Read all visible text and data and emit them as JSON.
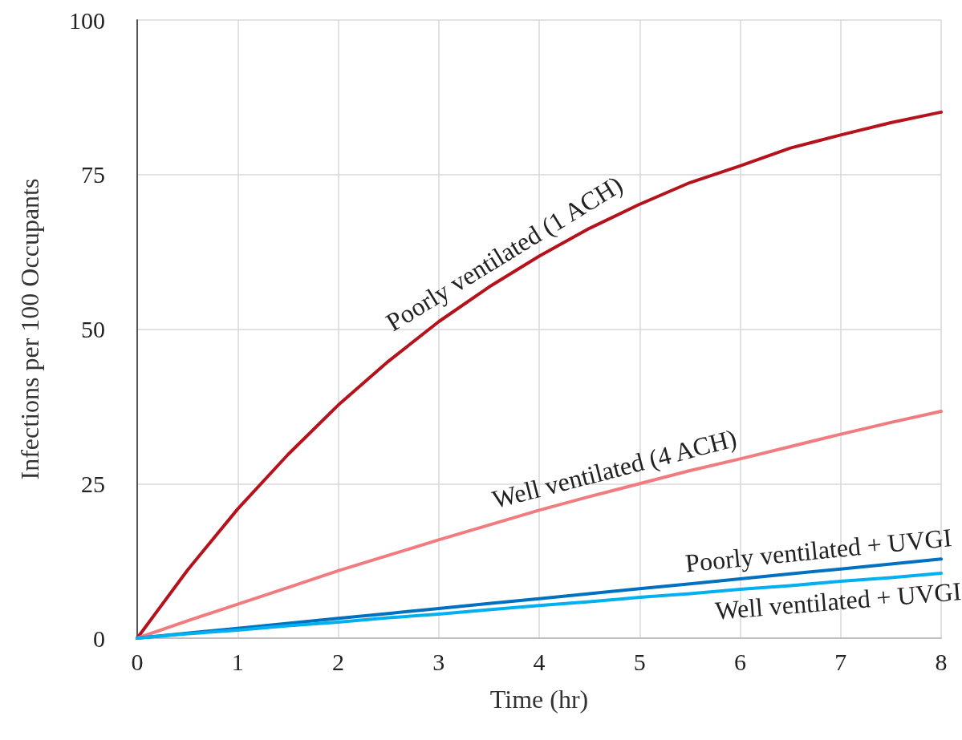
{
  "chart_data": {
    "type": "line",
    "xlabel": "Time (hr)",
    "ylabel": "Infections per 100 Occupants",
    "x": [
      0,
      0.5,
      1,
      1.5,
      2,
      2.5,
      3,
      3.5,
      4,
      4.5,
      5,
      5.5,
      6,
      6.5,
      7,
      7.5,
      8
    ],
    "series": [
      {
        "name": "Poorly ventilated (1 ACH)",
        "color": "#b5121b",
        "values": [
          0,
          11,
          20.9,
          29.7,
          37.7,
          44.8,
          51.2,
          56.8,
          61.8,
          66.3,
          70.2,
          73.7,
          76.4,
          79.3,
          81.4,
          83.4,
          85.1
        ]
      },
      {
        "name": "Well ventilated (4 ACH)",
        "color": "#f07c80",
        "values": [
          0,
          2.8,
          5.5,
          8.2,
          10.9,
          13.4,
          15.9,
          18.3,
          20.7,
          22.9,
          25,
          27.1,
          29,
          31,
          33,
          34.9,
          36.7
        ]
      },
      {
        "name": "Poorly ventilated + UVGI",
        "color": "#0070c0",
        "values": [
          0,
          0.8,
          1.6,
          2.4,
          3.2,
          4,
          4.8,
          5.6,
          6.4,
          7.2,
          8,
          8.8,
          9.6,
          10.4,
          11.2,
          12,
          12.8
        ]
      },
      {
        "name": "Well ventilated + UVGI",
        "color": "#00b0f0",
        "values": [
          0,
          0.7,
          1.3,
          2,
          2.6,
          3.3,
          3.9,
          4.6,
          5.3,
          5.9,
          6.6,
          7.2,
          7.9,
          8.5,
          9.2,
          9.8,
          10.5
        ]
      }
    ],
    "xlim": [
      0,
      8
    ],
    "xticks": [
      0,
      1,
      2,
      3,
      4,
      5,
      6,
      7,
      8
    ],
    "ylim": [
      0,
      100
    ],
    "yticks": [
      0,
      25,
      50,
      75,
      100
    ],
    "grid": true,
    "legend": false,
    "marker": "none",
    "line_style": "solid"
  }
}
